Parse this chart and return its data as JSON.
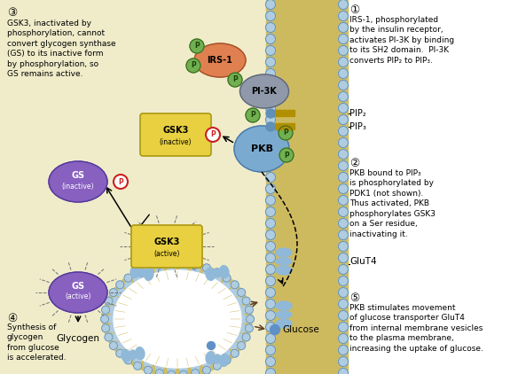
{
  "bg_color": "#f0ecca",
  "membrane_bg": "#d4c06a",
  "membrane_dots": "#b8cce0",
  "irs1_color": "#e08050",
  "pi3k_color": "#9099aa",
  "pkb_color": "#7aaad0",
  "gsk3_color": "#e8d040",
  "gs_color": "#8860c0",
  "p_green": "#70b050",
  "p_red_edge": "#cc2020",
  "pip_bar": "#b09000",
  "vesicle_bg": "#d4c06a",
  "glut4_color": "#90b8d8",
  "annotations": {
    "step1_circle": "①",
    "step1_text": "IRS-1, phosphorylated\nby the insulin receptor,\nactivates PI-3K by binding\nto its SH2 domain.  PI-3K\nconverts PIP₂ to PIP₃.",
    "step2_circle": "②",
    "step2_text": "PKB bound to PIP₃\nis phosphorylated by\nPDK1 (not shown).\nThus activated, PKB\nphosphorylates GSK3\non a Ser residue,\ninactivating it.",
    "step3_circle": "③",
    "step3_text": "GSK3, inactivated by\nphosphorylation, cannot\nconvert glycogen synthase\n(GS) to its inactive form\nby phosphorylation, so\nGS remains active.",
    "step4_circle": "④",
    "step4_text": "Synthesis of\nglycogen\nfrom glucose\nis accelerated.",
    "step5_circle": "⑤",
    "step5_text": "PKB stimulates movement\nof glucose transporter GluT4\nfrom internal membrane vesicles\nto the plasma membrane,\nincreasing the uptake of glucose."
  },
  "pip2_label": "PIP₂",
  "pip3_label": "PIP₃",
  "glut4_label": "GluT4",
  "glucose_label": "Glucose",
  "glycogen_label": "Glycogen"
}
